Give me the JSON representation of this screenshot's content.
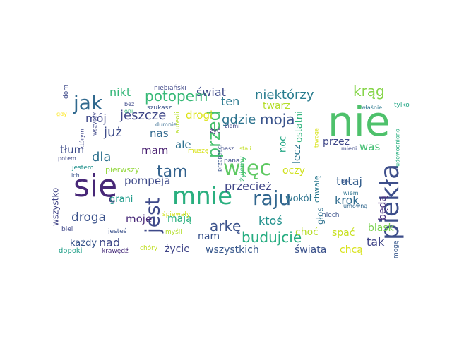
{
  "words": [
    {
      "text": "nie",
      "color": "#4ec16b"
    },
    {
      "text": "się",
      "color": "#472777"
    },
    {
      "text": "piekła",
      "color": "#3d4e8a"
    },
    {
      "text": "mnie",
      "color": "#29af7f"
    },
    {
      "text": "więc",
      "color": "#5ec962"
    },
    {
      "text": "raju",
      "color": "#31668e"
    },
    {
      "text": "jest",
      "color": "#3e4989"
    },
    {
      "text": "jak",
      "color": "#30698e"
    },
    {
      "text": "przed",
      "color": "#47c16e"
    },
    {
      "text": "tam",
      "color": "#33628d"
    },
    {
      "text": "budujcie",
      "color": "#26ad81"
    },
    {
      "text": "potopem",
      "color": "#38b977"
    },
    {
      "text": "arkę",
      "color": "#3b528b"
    },
    {
      "text": "krąg",
      "color": "#86d549"
    },
    {
      "text": "moja",
      "color": "#3a548c"
    },
    {
      "text": "niektórzy",
      "color": "#287c8e"
    },
    {
      "text": "jeszcze",
      "color": "#3f4788"
    },
    {
      "text": "gdzie",
      "color": "#2c738e"
    },
    {
      "text": "już",
      "color": "#3e4c8a"
    },
    {
      "text": "dla",
      "color": "#2d718e"
    },
    {
      "text": "droga",
      "color": "#3b528b"
    },
    {
      "text": "przecież",
      "color": "#404688"
    },
    {
      "text": "tutaj",
      "color": "#355f8d"
    },
    {
      "text": "krok",
      "color": "#2f6b8e"
    },
    {
      "text": "ktoś",
      "color": "#21918c"
    },
    {
      "text": "świat",
      "color": "#3e4989"
    },
    {
      "text": "nikt",
      "color": "#35b779"
    },
    {
      "text": "mój",
      "color": "#3f4889"
    },
    {
      "text": "ten",
      "color": "#2a788e"
    },
    {
      "text": "drogi",
      "color": "#dde318"
    },
    {
      "text": "nas",
      "color": "#31688e"
    },
    {
      "text": "mam",
      "color": "#481f70"
    },
    {
      "text": "ale",
      "color": "#2d708e"
    },
    {
      "text": "pompeja",
      "color": "#3e4a89"
    },
    {
      "text": "tłum",
      "color": "#3e4c8a"
    },
    {
      "text": "was",
      "color": "#42be71"
    },
    {
      "text": "twarz",
      "color": "#b5de2b"
    },
    {
      "text": "przez",
      "color": "#3f4788"
    },
    {
      "text": "oczy",
      "color": "#d0e11c"
    },
    {
      "text": "lecz",
      "color": "#2b758e"
    },
    {
      "text": "noc",
      "color": "#22a785"
    },
    {
      "text": "ostatni",
      "color": "#2eb37c"
    },
    {
      "text": "wokół",
      "color": "#2c728e"
    },
    {
      "text": "choć",
      "color": "#b8de29"
    },
    {
      "text": "spać",
      "color": "#c8e020"
    },
    {
      "text": "nad",
      "color": "#3f4788"
    },
    {
      "text": "moje",
      "color": "#482878"
    },
    {
      "text": "mają",
      "color": "#2ab07f"
    },
    {
      "text": "nam",
      "color": "#3a538b"
    },
    {
      "text": "życie",
      "color": "#404588"
    },
    {
      "text": "wszystkich",
      "color": "#38588c"
    },
    {
      "text": "tak",
      "color": "#404588"
    },
    {
      "text": "świata",
      "color": "#3b528b"
    },
    {
      "text": "będą",
      "color": "#46307e"
    },
    {
      "text": "chcą",
      "color": "#d8e219"
    },
    {
      "text": "blask",
      "color": "#7ad151"
    },
    {
      "text": "każdy",
      "color": "#39568c"
    },
    {
      "text": "grani",
      "color": "#1e9b8a"
    },
    {
      "text": "wszystko",
      "color": "#414487"
    },
    {
      "text": "głos",
      "color": "#2d718e"
    },
    {
      "text": "chwałę",
      "color": "#2a788e"
    },
    {
      "text": "pierwszy",
      "color": "#95d840"
    },
    {
      "text": "jestem",
      "color": "#21918c"
    },
    {
      "text": "biel",
      "color": "#3f4788"
    },
    {
      "text": "jesteś",
      "color": "#3b528b"
    },
    {
      "text": "myśli",
      "color": "#b4de2c"
    },
    {
      "text": "śpiewały",
      "color": "#d2e21b"
    },
    {
      "text": "żyjemy",
      "color": "#3dbc74"
    },
    {
      "text": "chóry",
      "color": "#c0df25"
    },
    {
      "text": "krawędź",
      "color": "#472d7b"
    },
    {
      "text": "dopoki",
      "color": "#1f9f88"
    },
    {
      "text": "niech",
      "color": "#3b528b"
    },
    {
      "text": "umowną",
      "color": "#31688e"
    },
    {
      "text": "wiem",
      "color": "#2c728e"
    },
    {
      "text": "mogę",
      "color": "#38588c"
    },
    {
      "text": "dół",
      "color": "#39568c"
    },
    {
      "text": "mieni",
      "color": "#3e4989"
    },
    {
      "text": "udowodniono",
      "color": "#29af7f"
    },
    {
      "text": "tylko",
      "color": "#22a785"
    },
    {
      "text": "właśnie",
      "color": "#2a788e"
    },
    {
      "text": "niebiański",
      "color": "#3f4788"
    },
    {
      "text": "bez",
      "color": "#3e4989"
    },
    {
      "text": "szukasz",
      "color": "#3b528b"
    },
    {
      "text": "oni",
      "color": "#35b779"
    },
    {
      "text": "dom",
      "color": "#3e4989"
    },
    {
      "text": "gdy",
      "color": "#fde725"
    },
    {
      "text": "dumnie",
      "color": "#31688e"
    },
    {
      "text": "aureoli",
      "color": "#b8de29"
    },
    {
      "text": "ziemi",
      "color": "#3f4788"
    },
    {
      "text": "żyć",
      "color": "#472d7b"
    },
    {
      "text": "pana",
      "color": "#3e4c8a"
    },
    {
      "text": "którym",
      "color": "#3f4788"
    },
    {
      "text": "wszyscy",
      "color": "#3f4788"
    },
    {
      "text": "potem",
      "color": "#3f4788"
    },
    {
      "text": "ich",
      "color": "#3b528b"
    },
    {
      "text": "muszę",
      "color": "#d8e219"
    },
    {
      "text": "nasz",
      "color": "#3e4989"
    },
    {
      "text": "stali",
      "color": "#c2df23"
    },
    {
      "text": "przepaści",
      "color": "#39568c"
    },
    {
      "text": "trwogę",
      "color": "#d8e219"
    }
  ]
}
